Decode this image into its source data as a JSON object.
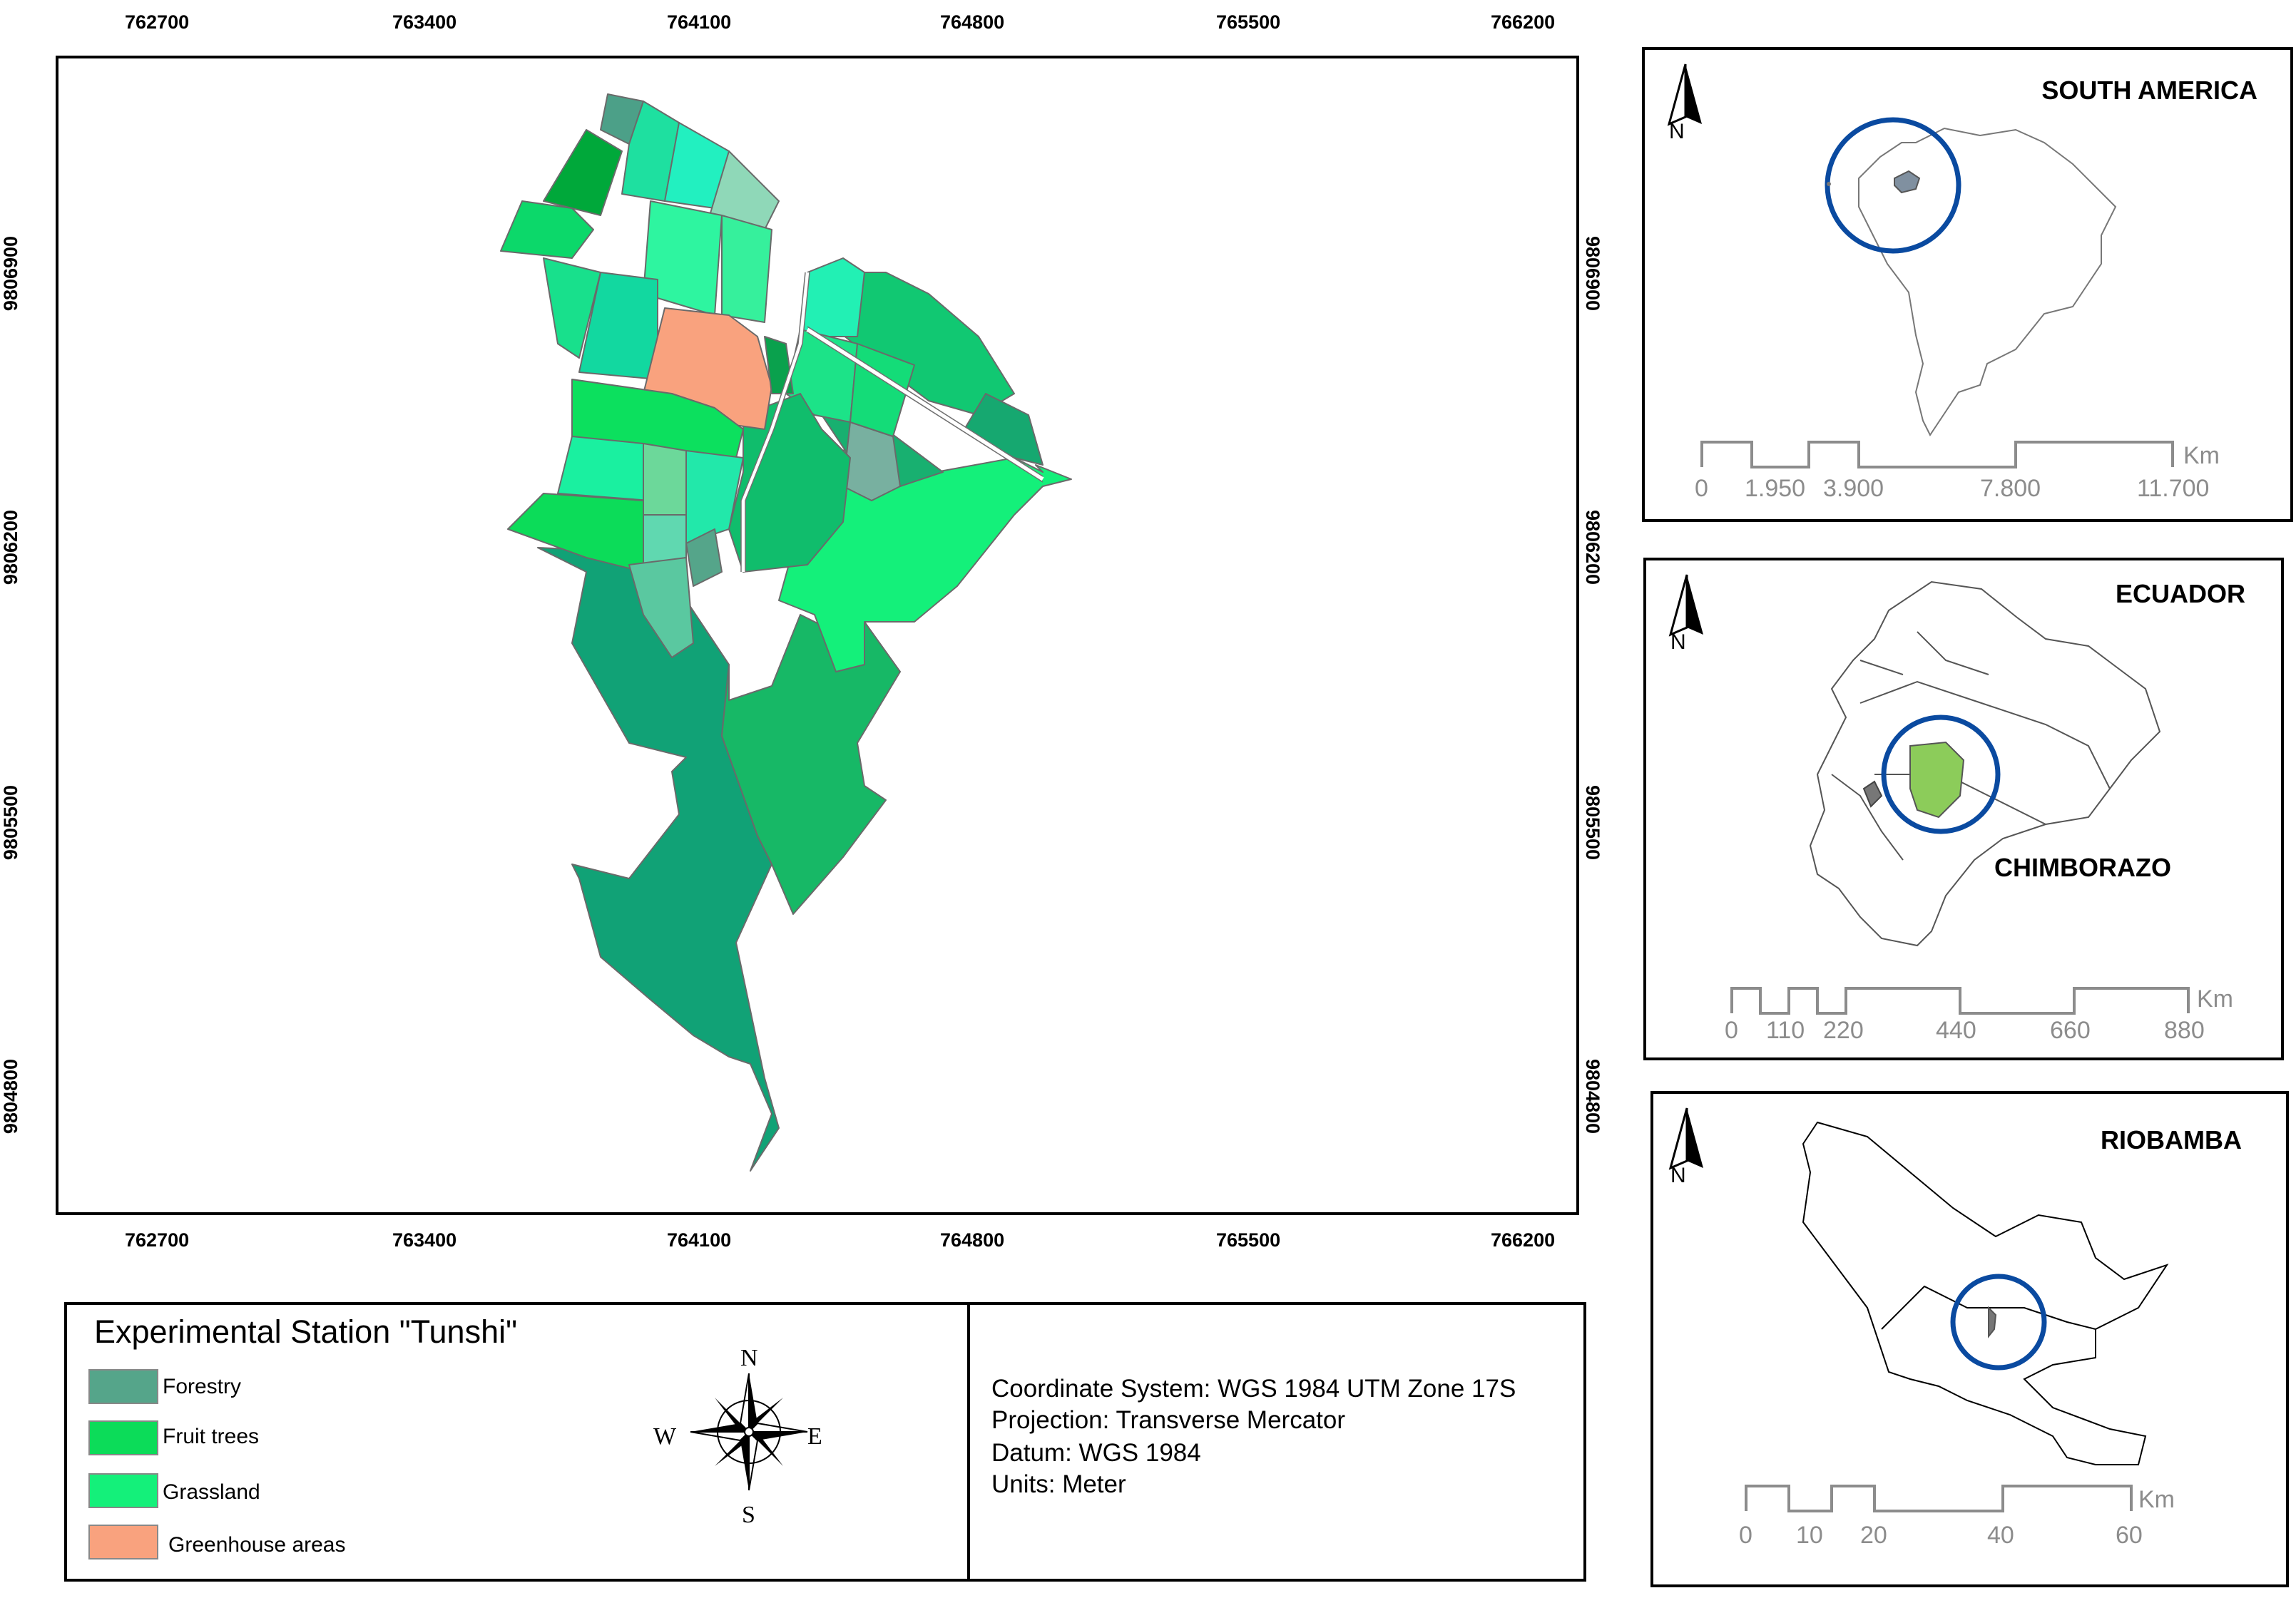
{
  "main_map": {
    "x_ticks": [
      "762700",
      "763400",
      "764100",
      "764800",
      "765500",
      "766200"
    ],
    "y_ticks": [
      "9806900",
      "9806200",
      "9805500",
      "9804800"
    ],
    "colors": {
      "forestry": "#55a58a",
      "fruit_trees": "#0cdc59",
      "grassland": "#14f07a",
      "greenhouse": "#f9a27e",
      "dark_green": "#17a462",
      "teal_main": "#11a276",
      "aqua": "#22f0b4"
    }
  },
  "insets": [
    {
      "title": "SOUTH AMERICA",
      "north": "N",
      "scale_unit": "Km",
      "scale_labels": [
        "0",
        "1.950",
        "3.900",
        "7.800",
        "11.700"
      ]
    },
    {
      "title": "ECUADOR",
      "north": "N",
      "scale_unit": "Km",
      "label": "CHIMBORAZO",
      "scale_labels": [
        "0",
        "110",
        "220",
        "440",
        "660",
        "880"
      ]
    },
    {
      "title": "RIOBAMBA",
      "north": "N",
      "scale_unit": "Km",
      "scale_labels": [
        "0",
        "10",
        "20",
        "40",
        "60"
      ]
    }
  ],
  "legend": {
    "title": "Experimental Station \"Tunshi\"",
    "items": [
      {
        "label": "Forestry",
        "color": "#55a58a"
      },
      {
        "label": "Fruit trees",
        "color": "#0cdc59"
      },
      {
        "label": "Grassland",
        "color": "#14f07a"
      },
      {
        "label": "Greenhouse areas",
        "color": "#f9a27e"
      }
    ],
    "compass": {
      "n": "N",
      "s": "S",
      "e": "E",
      "w": "W"
    }
  },
  "info": {
    "lines": [
      "Coordinate System: WGS 1984 UTM Zone 17S",
      "Projection: Transverse Mercator",
      "Datum: WGS 1984",
      "Units: Meter"
    ]
  },
  "highlight_color": "#0a4aa0",
  "chimborazo_color": "#8ccc5a"
}
